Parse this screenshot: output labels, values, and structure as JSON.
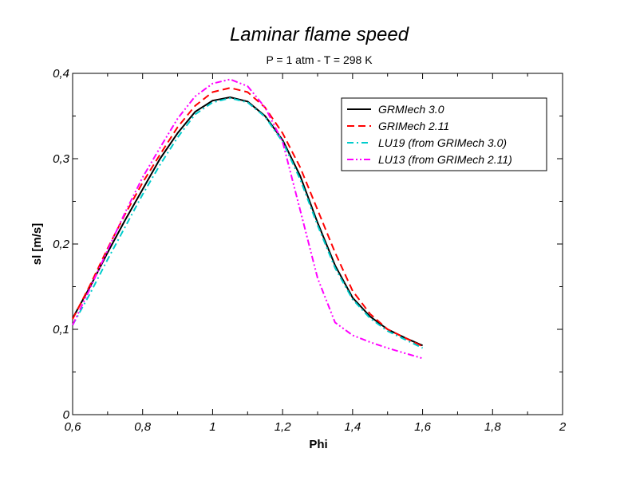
{
  "chart_data": {
    "type": "line",
    "title": "Laminar flame speed",
    "subtitle": "P = 1 atm - T = 298 K",
    "xlabel": "Phi",
    "ylabel": "sl [m/s]",
    "xlim": [
      0.6,
      2.0
    ],
    "ylim": [
      0,
      0.4
    ],
    "xticks": [
      0.6,
      0.8,
      1.0,
      1.2,
      1.4,
      1.6,
      1.8,
      2.0
    ],
    "xtick_labels": [
      "0,6",
      "0,8",
      "1",
      "1,2",
      "1,4",
      "1,6",
      "1,8",
      "2"
    ],
    "yticks": [
      0,
      0.1,
      0.2,
      0.3,
      0.4
    ],
    "ytick_labels": [
      "0",
      "0,1",
      "0,2",
      "0,3",
      "0,4"
    ],
    "grid": false,
    "legend_position": "top-right",
    "series": [
      {
        "name": "GRMIech 3.0",
        "color": "#000000",
        "dash": "solid",
        "x": [
          0.6,
          0.65,
          0.7,
          0.75,
          0.8,
          0.85,
          0.9,
          0.95,
          1.0,
          1.05,
          1.1,
          1.15,
          1.2,
          1.25,
          1.3,
          1.35,
          1.4,
          1.45,
          1.5,
          1.55,
          1.6
        ],
        "y": [
          0.113,
          0.15,
          0.19,
          0.228,
          0.264,
          0.3,
          0.33,
          0.355,
          0.368,
          0.372,
          0.367,
          0.35,
          0.322,
          0.28,
          0.225,
          0.175,
          0.137,
          0.115,
          0.1,
          0.09,
          0.081
        ]
      },
      {
        "name": "GRIMech 2.11",
        "color": "#ff0000",
        "dash": "dashed",
        "x": [
          0.6,
          0.65,
          0.7,
          0.75,
          0.8,
          0.85,
          0.9,
          0.95,
          1.0,
          1.05,
          1.1,
          1.15,
          1.2,
          1.25,
          1.3,
          1.35,
          1.4,
          1.45,
          1.5,
          1.55,
          1.6
        ],
        "y": [
          0.112,
          0.152,
          0.195,
          0.235,
          0.272,
          0.305,
          0.337,
          0.362,
          0.378,
          0.383,
          0.378,
          0.36,
          0.33,
          0.29,
          0.24,
          0.19,
          0.145,
          0.118,
          0.1,
          0.09,
          0.08
        ]
      },
      {
        "name": "LU19 (from GRIMech 3.0)",
        "color": "#00cccc",
        "dash": "dashdot",
        "x": [
          0.6,
          0.65,
          0.7,
          0.75,
          0.8,
          0.85,
          0.9,
          0.95,
          1.0,
          1.05,
          1.1,
          1.15,
          1.2,
          1.25,
          1.3,
          1.35,
          1.4,
          1.45,
          1.5,
          1.55,
          1.6
        ],
        "y": [
          0.105,
          0.142,
          0.182,
          0.22,
          0.258,
          0.293,
          0.325,
          0.352,
          0.366,
          0.371,
          0.366,
          0.349,
          0.32,
          0.276,
          0.222,
          0.172,
          0.135,
          0.113,
          0.098,
          0.088,
          0.078
        ]
      },
      {
        "name": "LU13 (from GRIMech 2.11)",
        "color": "#ff00ff",
        "dash": "dashdotdot",
        "x": [
          0.6,
          0.65,
          0.7,
          0.75,
          0.8,
          0.85,
          0.9,
          0.95,
          1.0,
          1.05,
          1.1,
          1.15,
          1.2,
          1.25,
          1.3,
          1.35,
          1.4,
          1.45,
          1.5,
          1.55,
          1.6
        ],
        "y": [
          0.105,
          0.148,
          0.193,
          0.237,
          0.278,
          0.313,
          0.347,
          0.373,
          0.388,
          0.393,
          0.385,
          0.36,
          0.32,
          0.24,
          0.16,
          0.108,
          0.093,
          0.085,
          0.078,
          0.072,
          0.066
        ]
      }
    ]
  }
}
